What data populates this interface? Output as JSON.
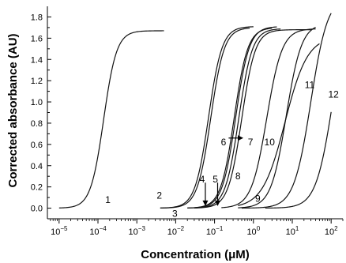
{
  "chart_data": {
    "type": "line",
    "xscale": "log",
    "xlim": [
      5e-06,
      200
    ],
    "ylim": [
      -0.1,
      1.9
    ],
    "xlabel": "Concentration (μM)",
    "ylabel": "Corrected absorbance (AU)",
    "yticks": [
      "0.0",
      "0.2",
      "0.4",
      "0.6",
      "0.8",
      "1.0",
      "1.2",
      "1.4",
      "1.6",
      "1.8"
    ],
    "xticks": [
      {
        "base": "10",
        "exp": "−5"
      },
      {
        "base": "10",
        "exp": "−4"
      },
      {
        "base": "10",
        "exp": "−3"
      },
      {
        "base": "10",
        "exp": "−2"
      },
      {
        "base": "10",
        "exp": "−1"
      },
      {
        "base": "10",
        "exp": "0"
      },
      {
        "base": "10",
        "exp": "1"
      },
      {
        "base": "10",
        "exp": "2"
      }
    ],
    "series": [
      {
        "name": "1",
        "xmin": 1e-05,
        "xmax": 0.005,
        "ec50": 0.00014,
        "slope": 2.6,
        "top": 1.67
      },
      {
        "name": "2",
        "xmin": 0.004,
        "xmax": 1.0,
        "ec50": 0.07,
        "slope": 2.5,
        "top": 1.71
      },
      {
        "name": "3",
        "xmin": 0.004,
        "xmax": 0.8,
        "ec50": 0.08,
        "slope": 2.5,
        "top": 1.7
      },
      {
        "name": "4",
        "xmin": 0.02,
        "xmax": 3.0,
        "ec50": 0.32,
        "slope": 2.5,
        "top": 1.7
      },
      {
        "name": "5",
        "xmin": 0.02,
        "xmax": 4.0,
        "ec50": 0.35,
        "slope": 2.5,
        "top": 1.71
      },
      {
        "name": "6",
        "xmin": 0.03,
        "xmax": 5.0,
        "ec50": 0.42,
        "slope": 2.5,
        "top": 1.69
      },
      {
        "name": "7",
        "xmin": 0.03,
        "xmax": 30,
        "ec50": 0.5,
        "slope": 2.5,
        "top": 1.68
      },
      {
        "name": "8",
        "xmin": 0.15,
        "xmax": 40,
        "ec50": 2.2,
        "slope": 2.2,
        "top": 1.69
      },
      {
        "name": "9",
        "xmin": 0.4,
        "xmax": 40,
        "ec50": 7.0,
        "slope": 2.2,
        "top": 1.74
      },
      {
        "name": "10",
        "xmin": 0.4,
        "xmax": 50,
        "ec50": 6.5,
        "slope": 1.5,
        "top": 1.62
      },
      {
        "name": "11",
        "xmin": 0.5,
        "xmax": 100,
        "ec50": 30,
        "slope": 2.0,
        "top": 2.0
      },
      {
        "name": "12",
        "xmin": 2,
        "xmax": 100,
        "ec50": 110,
        "slope": 2.0,
        "top": 2.0
      }
    ],
    "labels": [
      {
        "text": "1",
        "x": 0.00018,
        "y": 0.08
      },
      {
        "text": "2",
        "x": 0.0038,
        "y": 0.12
      },
      {
        "text": "3",
        "x": 0.0095,
        "y": -0.05
      },
      {
        "text": "4",
        "x": 0.048,
        "y": 0.27
      },
      {
        "text": "5",
        "x": 0.105,
        "y": 0.27
      },
      {
        "text": "6",
        "x": 0.17,
        "y": 0.62
      },
      {
        "text": "7",
        "x": 0.84,
        "y": 0.62
      },
      {
        "text": "8",
        "x": 0.4,
        "y": 0.3
      },
      {
        "text": "9",
        "x": 1.3,
        "y": 0.09
      },
      {
        "text": "10",
        "x": 2.6,
        "y": 0.62
      },
      {
        "text": "11",
        "x": 28,
        "y": 1.16
      },
      {
        "text": "12",
        "x": 115,
        "y": 1.07
      }
    ],
    "arrows": [
      {
        "name": "arrow-label-4",
        "x": 0.058,
        "y1": 0.24,
        "y2": 0.02,
        "dir": "down"
      },
      {
        "name": "arrow-label-5",
        "x": 0.12,
        "y1": 0.24,
        "y2": 0.02,
        "dir": "down"
      },
      {
        "name": "arrow-label-6",
        "x1": 0.23,
        "x2": 0.55,
        "y": 0.66,
        "dir": "right"
      }
    ]
  }
}
